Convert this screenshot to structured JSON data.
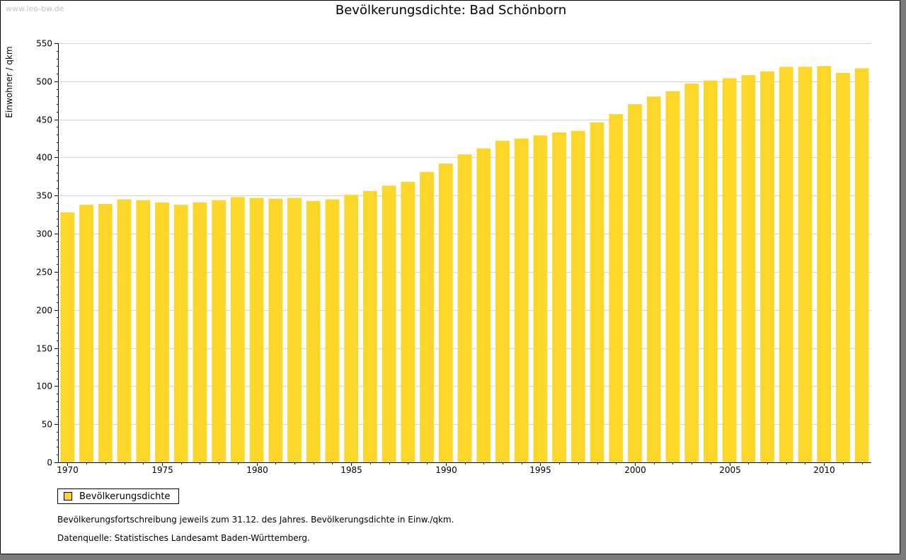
{
  "watermark": "www.leo-bw.de",
  "chart_data": {
    "type": "bar",
    "title": "Bevölkerungsdichte: Bad Schönborn",
    "xlabel": "",
    "ylabel": "Einwohner / qkm",
    "ylim": [
      0,
      550
    ],
    "yticks": [
      0,
      50,
      100,
      150,
      200,
      250,
      300,
      350,
      400,
      450,
      500,
      550
    ],
    "xtick_labels": [
      "1970",
      "1975",
      "1980",
      "1985",
      "1990",
      "1995",
      "2000",
      "2005",
      "2010"
    ],
    "categories": [
      "1970",
      "1971",
      "1972",
      "1973",
      "1974",
      "1975",
      "1976",
      "1977",
      "1978",
      "1979",
      "1980",
      "1981",
      "1982",
      "1983",
      "1984",
      "1985",
      "1986",
      "1987",
      "1988",
      "1989",
      "1990",
      "1991",
      "1992",
      "1993",
      "1994",
      "1995",
      "1996",
      "1997",
      "1998",
      "1999",
      "2000",
      "2001",
      "2002",
      "2003",
      "2004",
      "2005",
      "2006",
      "2007",
      "2008",
      "2009",
      "2010",
      "2011",
      "2012"
    ],
    "series": [
      {
        "name": "Bevölkerungsdichte",
        "color": "#fdd62a",
        "values": [
          328,
          338,
          339,
          345,
          344,
          341,
          338,
          341,
          344,
          348,
          347,
          346,
          347,
          343,
          345,
          351,
          356,
          363,
          368,
          381,
          392,
          404,
          412,
          422,
          425,
          429,
          433,
          435,
          446,
          457,
          470,
          480,
          487,
          497,
          501,
          504,
          508,
          513,
          519,
          519,
          520,
          511,
          517
        ]
      }
    ],
    "grid": true,
    "legend": "bottom-left"
  },
  "legend": {
    "label": "Bevölkerungsdichte"
  },
  "notes": {
    "line1": "Bevölkerungsfortschreibung jeweils zum 31.12. des Jahres. Bevölkerungsdichte in Einw./qkm.",
    "line2": "Datenquelle: Statistisches Landesamt Baden-Württemberg."
  }
}
